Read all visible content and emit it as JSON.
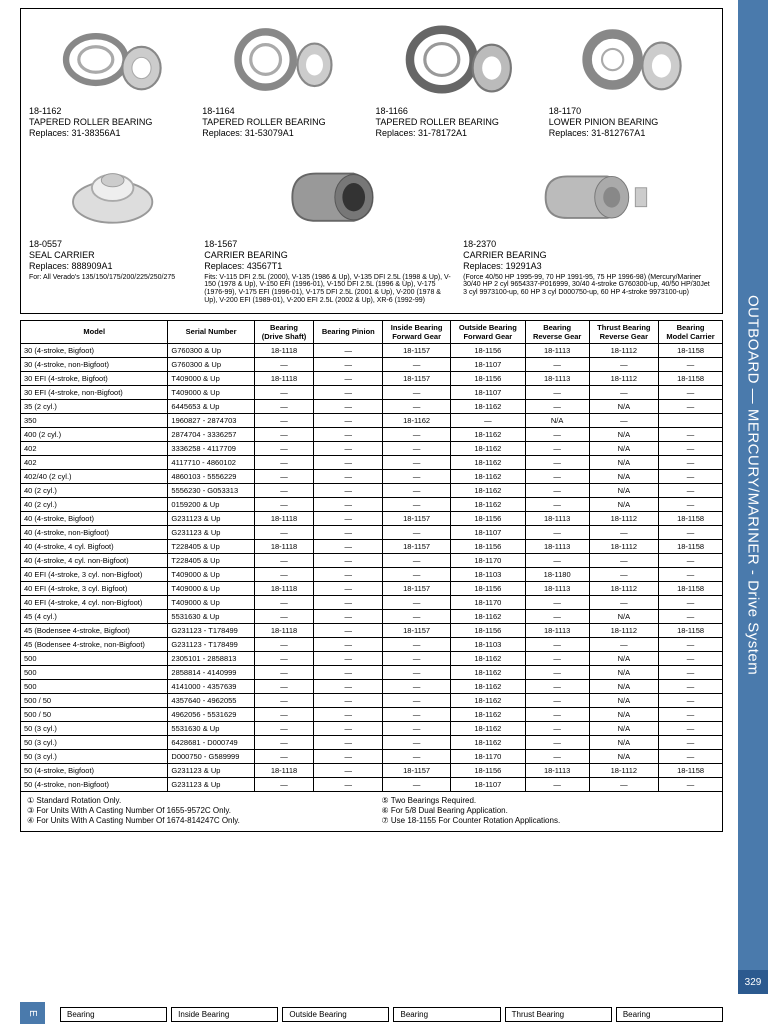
{
  "sidebar": {
    "category": "OUTBOARD — MERCURY/MARINER - Drive System",
    "page_number": "329",
    "tab_letter": "E"
  },
  "products": [
    {
      "sku": "18-1162",
      "name": "TAPERED ROLLER BEARING",
      "replaces": "Replaces: 31-38356A1"
    },
    {
      "sku": "18-1164",
      "name": "TAPERED ROLLER BEARING",
      "replaces": "Replaces: 31-53079A1"
    },
    {
      "sku": "18-1166",
      "name": "TAPERED ROLLER BEARING",
      "replaces": "Replaces: 31-78172A1"
    },
    {
      "sku": "18-1170",
      "name": "LOWER PINION BEARING",
      "replaces": "Replaces: 31-812767A1"
    }
  ],
  "products2": [
    {
      "sku": "18-0557",
      "name": "SEAL CARRIER",
      "replaces": "Replaces: 888909A1",
      "note": "For: All Verado's\n135/150/175/200/225/250/275"
    },
    {
      "sku": "18-1567",
      "name": "CARRIER BEARING",
      "replaces": "Replaces: 43567T1",
      "note": "Fits: V-115 DFI 2.5L (2000), V-135 (1986 & Up),\nV-135 DFI 2.5L (1998 & Up), V-150 (1978 & Up),\nV-150 EFI (1996-01), V-150 DFI 2.5L (1996 & Up),\nV-175 (1976-99), V-175 EFI (1996-01), V-175 DFI 2.5L\n(2001 & Up), V-200 (1978 & Up), V-200 EFI (1989-01), V-200 EFI\n2.5L (2002 & Up), XR-6 (1992-99)"
    },
    {
      "sku": "18-2370",
      "name": "CARRIER BEARING",
      "replaces": "Replaces: 19291A3",
      "note": "(Force 40/50 HP 1995-99, 70 HP 1991-95, 75 HP 1996-98)\n(Mercury/Mariner 30/40 HP 2 cyl 9654337-P016999, 30/40\n4-stroke G760300-up, 40/50 HP/30Jet 3 cyl 9973100-up, 60\nHP 3 cyl D000750-up, 60 HP 4-stroke 9973100-up)"
    }
  ],
  "table": {
    "columns": [
      "Model",
      "Serial Number",
      "Bearing\n(Drive Shaft)",
      "Bearing Pinion",
      "Inside Bearing\nForward Gear",
      "Outside Bearing\nForward Gear",
      "Bearing\nReverse Gear",
      "Thrust Bearing\nReverse Gear",
      "Bearing\nModel Carrier"
    ],
    "rows": [
      [
        "30 (4-stroke, Bigfoot)",
        "G760300 & Up",
        "18-1118",
        "—",
        "18-1157",
        "18-1156",
        "18-1113",
        "18-1112",
        "18-1158"
      ],
      [
        "30 (4-stroke, non-Bigfoot)",
        "G760300 & Up",
        "—",
        "—",
        "—",
        "18-1107",
        "—",
        "—",
        "—"
      ],
      [
        "30 EFI (4-stroke, Bigfoot)",
        "T409000 & Up",
        "18-1118",
        "—",
        "18-1157",
        "18-1156",
        "18-1113",
        "18-1112",
        "18-1158"
      ],
      [
        "30 EFI (4-stroke, non-Bigfoot)",
        "T409000 & Up",
        "—",
        "—",
        "—",
        "18-1107",
        "—",
        "—",
        "—"
      ],
      [
        "35 (2 cyl.)",
        "6445653 & Up",
        "—",
        "—",
        "—",
        "18-1162",
        "—",
        "N/A",
        "—"
      ],
      [
        "350",
        "1960827 - 2874703",
        "—",
        "—",
        "18-1162",
        "—",
        "N/A",
        "—",
        ""
      ],
      [
        "400 (2 cyl.)",
        "2874704 - 3336257",
        "—",
        "—",
        "—",
        "18-1162",
        "—",
        "N/A",
        "—"
      ],
      [
        "402",
        "3336258 - 4117709",
        "—",
        "—",
        "—",
        "18-1162",
        "—",
        "N/A",
        "—"
      ],
      [
        "402",
        "4117710 - 4860102",
        "—",
        "—",
        "—",
        "18-1162",
        "—",
        "N/A",
        "—"
      ],
      [
        "402/40 (2 cyl.)",
        "4860103 - 5556229",
        "—",
        "—",
        "—",
        "18-1162",
        "—",
        "N/A",
        "—"
      ],
      [
        "40 (2 cyl.)",
        "5556230 - G053313",
        "—",
        "—",
        "—",
        "18-1162",
        "—",
        "N/A",
        "—"
      ],
      [
        "40 (2 cyl.)",
        "0159200 & Up",
        "—",
        "—",
        "—",
        "18-1162",
        "—",
        "N/A",
        "—"
      ],
      [
        "40 (4-stroke, Bigfoot)",
        "G231123 & Up",
        "18-1118",
        "—",
        "18-1157",
        "18-1156",
        "18-1113",
        "18-1112",
        "18-1158"
      ],
      [
        "40 (4-stroke, non-Bigfoot)",
        "G231123 & Up",
        "—",
        "—",
        "—",
        "18-1107",
        "—",
        "—",
        "—"
      ],
      [
        "40 (4-stroke, 4 cyl. Bigfoot)",
        "T228405 & Up",
        "18-1118",
        "—",
        "18-1157",
        "18-1156",
        "18-1113",
        "18-1112",
        "18-1158"
      ],
      [
        "40 (4-stroke, 4 cyl. non-Bigfoot)",
        "T228405 & Up",
        "—",
        "—",
        "—",
        "18-1170",
        "—",
        "—",
        "—"
      ],
      [
        "40 EFI (4-stroke, 3 cyl. non-Bigfoot)",
        "T409000 & Up",
        "—",
        "—",
        "—",
        "18-1103",
        "18-1180",
        "—",
        "—"
      ],
      [
        "40 EFI (4-stroke, 3 cyl. Bigfoot)",
        "T409000 & Up",
        "18-1118",
        "—",
        "18-1157",
        "18-1156",
        "18-1113",
        "18-1112",
        "18-1158"
      ],
      [
        "40 EFI (4-stroke, 4 cyl. non-Bigfoot)",
        "T409000 & Up",
        "—",
        "—",
        "—",
        "18-1170",
        "—",
        "—",
        "—"
      ],
      [
        "45 (4 cyl.)",
        "5531630 & Up",
        "—",
        "—",
        "—",
        "18-1162",
        "—",
        "N/A",
        "—"
      ],
      [
        "45 (Bodensee 4-stroke, Bigfoot)",
        "G231123 - T178499",
        "18-1118",
        "—",
        "18-1157",
        "18-1156",
        "18-1113",
        "18-1112",
        "18-1158"
      ],
      [
        "45 (Bodensee 4-stroke, non-Bigfoot)",
        "G231123 - T178499",
        "—",
        "—",
        "—",
        "18-1103",
        "—",
        "—",
        "—"
      ],
      [
        "500",
        "2305101 - 2858813",
        "—",
        "—",
        "—",
        "18-1162",
        "—",
        "N/A",
        "—"
      ],
      [
        "500",
        "2858814 - 4140999",
        "—",
        "—",
        "—",
        "18-1162",
        "—",
        "N/A",
        "—"
      ],
      [
        "500",
        "4141000 - 4357639",
        "—",
        "—",
        "—",
        "18-1162",
        "—",
        "N/A",
        "—"
      ],
      [
        "500 / 50",
        "4357640 - 4962055",
        "—",
        "—",
        "—",
        "18-1162",
        "—",
        "N/A",
        "—"
      ],
      [
        "500 / 50",
        "4962056 - 5531629",
        "—",
        "—",
        "—",
        "18-1162",
        "—",
        "N/A",
        "—"
      ],
      [
        "50 (3 cyl.)",
        "5531630 & Up",
        "—",
        "—",
        "—",
        "18-1162",
        "—",
        "N/A",
        "—"
      ],
      [
        "50 (3 cyl.)",
        "6428681 - D000749",
        "—",
        "—",
        "—",
        "18-1162",
        "—",
        "N/A",
        "—"
      ],
      [
        "50 (3 cyl.)",
        "D000750 - G589999",
        "—",
        "—",
        "—",
        "18-1170",
        "—",
        "N/A",
        "—"
      ],
      [
        "50 (4-stroke, Bigfoot)",
        "G231123 & Up",
        "18-1118",
        "—",
        "18-1157",
        "18-1156",
        "18-1113",
        "18-1112",
        "18-1158"
      ],
      [
        "50 (4-stroke, non-Bigfoot)",
        "G231123 & Up",
        "—",
        "—",
        "—",
        "18-1107",
        "—",
        "—",
        "—"
      ]
    ]
  },
  "footnotes": {
    "left": [
      "①  Standard Rotation Only.",
      "③  For Units With A Casting Number Of 1655-9572C Only.",
      "④  For Units With A Casting Number Of 1674-814247C Only."
    ],
    "right": [
      "⑤  Two Bearings Required.",
      "⑥  For 5/8 Dual Bearing Application.",
      "⑦  Use 18-1155 For Counter Rotation Applications."
    ]
  },
  "bottom_headers": [
    "Bearing",
    "Inside Bearing",
    "Outside Bearing",
    "Bearing",
    "Thrust Bearing",
    "Bearing"
  ]
}
